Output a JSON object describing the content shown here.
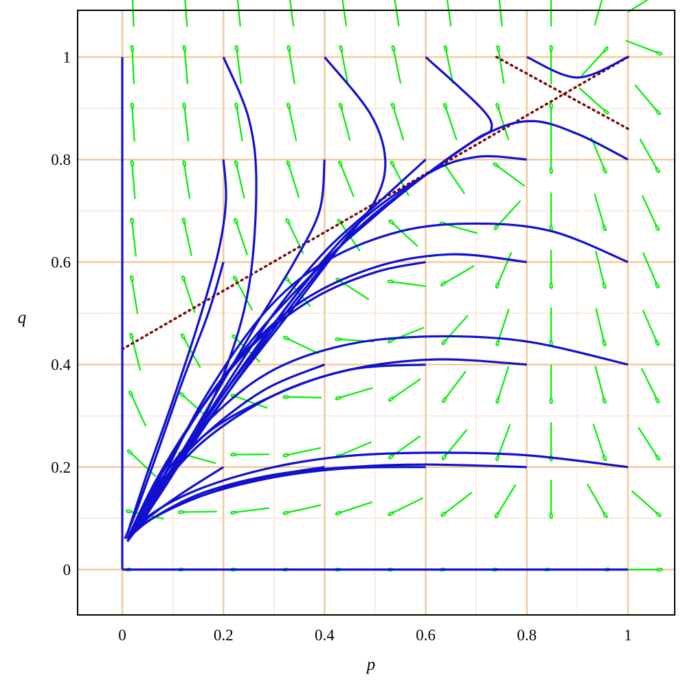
{
  "chart_data": {
    "type": "line",
    "subtype": "phase-portrait",
    "title": "",
    "xlabel": "p",
    "ylabel": "q",
    "xlim": [
      -0.09,
      1.09
    ],
    "ylim": [
      -0.09,
      1.09
    ],
    "xticks": [
      0,
      0.2,
      0.4,
      0.6,
      0.8,
      1
    ],
    "yticks": [
      0,
      0.2,
      0.4,
      0.6,
      0.8,
      1
    ],
    "xtick_labels": [
      "0",
      "0.2",
      "0.4",
      "0.6",
      "0.8",
      "1"
    ],
    "ytick_labels": [
      "0",
      "0.2",
      "0.4",
      "0.6",
      "0.8",
      "1"
    ],
    "grid": true,
    "colors": {
      "trajectory": "#1010d0",
      "direction_field": "#00ee00",
      "dotted_line": "#7b0a0a",
      "grid_major": "#f7c89a",
      "grid_minor": "#fbe6d4",
      "frame": "#000000"
    },
    "dotted_lines": [
      {
        "points": [
          [
            0,
            0.43
          ],
          [
            1,
            1
          ]
        ]
      },
      {
        "points": [
          [
            0.74,
            1
          ],
          [
            1,
            0.86
          ]
        ]
      }
    ],
    "trajectories": [
      {
        "points": [
          [
            0,
            1
          ],
          [
            0,
            0.5
          ],
          [
            0,
            0
          ]
        ]
      },
      {
        "points": [
          [
            0.2,
            1
          ],
          [
            0.25,
            0.88
          ],
          [
            0.265,
            0.75
          ],
          [
            0.25,
            0.55
          ],
          [
            0.2,
            0.38
          ],
          [
            0.12,
            0.22
          ],
          [
            0.05,
            0.11
          ],
          [
            0.01,
            0.055
          ]
        ]
      },
      {
        "points": [
          [
            0.4,
            1
          ],
          [
            0.49,
            0.89
          ],
          [
            0.52,
            0.8
          ],
          [
            0.5,
            0.72
          ],
          [
            0.43,
            0.63
          ],
          [
            0.33,
            0.5
          ],
          [
            0.22,
            0.36
          ],
          [
            0.12,
            0.22
          ],
          [
            0.04,
            0.1
          ],
          [
            0.01,
            0.055
          ]
        ]
      },
      {
        "points": [
          [
            0.6,
            1
          ],
          [
            0.71,
            0.9
          ],
          [
            0.73,
            0.86
          ],
          [
            0.7,
            0.84
          ],
          [
            0.6,
            0.77
          ],
          [
            0.5,
            0.69
          ],
          [
            0.38,
            0.58
          ],
          [
            0.25,
            0.41
          ],
          [
            0.12,
            0.23
          ],
          [
            0.04,
            0.1
          ],
          [
            0.01,
            0.055
          ]
        ]
      },
      {
        "points": [
          [
            0.8,
            1
          ],
          [
            0.9,
            0.96
          ],
          [
            1,
            1
          ]
        ]
      },
      {
        "points": [
          [
            1,
            0.8
          ],
          [
            0.9,
            0.85
          ],
          [
            0.81,
            0.875
          ],
          [
            0.72,
            0.85
          ],
          [
            0.6,
            0.77
          ],
          [
            0.45,
            0.65
          ],
          [
            0.3,
            0.47
          ],
          [
            0.15,
            0.26
          ],
          [
            0.05,
            0.11
          ],
          [
            0.01,
            0.055
          ]
        ]
      },
      {
        "points": [
          [
            0.8,
            0.8
          ],
          [
            0.7,
            0.805
          ],
          [
            0.6,
            0.77
          ],
          [
            0.45,
            0.66
          ],
          [
            0.3,
            0.48
          ],
          [
            0.15,
            0.27
          ],
          [
            0.05,
            0.11
          ],
          [
            0.01,
            0.055
          ]
        ]
      },
      {
        "points": [
          [
            0.6,
            0.8
          ],
          [
            0.5,
            0.71
          ],
          [
            0.4,
            0.62
          ],
          [
            0.3,
            0.5
          ],
          [
            0.18,
            0.32
          ],
          [
            0.08,
            0.16
          ],
          [
            0.02,
            0.07
          ]
        ]
      },
      {
        "points": [
          [
            0.4,
            0.8
          ],
          [
            0.39,
            0.7
          ],
          [
            0.34,
            0.6
          ],
          [
            0.26,
            0.47
          ],
          [
            0.16,
            0.3
          ],
          [
            0.07,
            0.15
          ],
          [
            0.02,
            0.07
          ]
        ]
      },
      {
        "points": [
          [
            0.2,
            0.8
          ],
          [
            0.205,
            0.72
          ],
          [
            0.19,
            0.62
          ],
          [
            0.15,
            0.48
          ],
          [
            0.1,
            0.33
          ],
          [
            0.05,
            0.19
          ],
          [
            0.01,
            0.07
          ]
        ]
      },
      {
        "points": [
          [
            0.2,
            0.6
          ],
          [
            0.17,
            0.5
          ],
          [
            0.12,
            0.37
          ],
          [
            0.07,
            0.23
          ],
          [
            0.03,
            0.12
          ],
          [
            0.005,
            0.06
          ]
        ]
      },
      {
        "points": [
          [
            1,
            0.6
          ],
          [
            0.85,
            0.66
          ],
          [
            0.7,
            0.675
          ],
          [
            0.55,
            0.66
          ],
          [
            0.4,
            0.6
          ],
          [
            0.28,
            0.5
          ],
          [
            0.16,
            0.33
          ],
          [
            0.07,
            0.16
          ],
          [
            0.01,
            0.06
          ]
        ]
      },
      {
        "points": [
          [
            0.8,
            0.6
          ],
          [
            0.65,
            0.615
          ],
          [
            0.5,
            0.59
          ],
          [
            0.35,
            0.52
          ],
          [
            0.22,
            0.4
          ],
          [
            0.12,
            0.26
          ],
          [
            0.04,
            0.12
          ],
          [
            0.01,
            0.06
          ]
        ]
      },
      {
        "points": [
          [
            0.6,
            0.6
          ],
          [
            0.5,
            0.58
          ],
          [
            0.38,
            0.53
          ],
          [
            0.26,
            0.44
          ],
          [
            0.16,
            0.32
          ],
          [
            0.07,
            0.18
          ],
          [
            0.01,
            0.06
          ]
        ]
      },
      {
        "points": [
          [
            0.4,
            0.6
          ],
          [
            0.33,
            0.53
          ],
          [
            0.25,
            0.44
          ],
          [
            0.16,
            0.32
          ],
          [
            0.08,
            0.19
          ],
          [
            0.02,
            0.07
          ]
        ]
      },
      {
        "points": [
          [
            1,
            0.4
          ],
          [
            0.8,
            0.445
          ],
          [
            0.62,
            0.455
          ],
          [
            0.45,
            0.44
          ],
          [
            0.3,
            0.39
          ],
          [
            0.18,
            0.3
          ],
          [
            0.08,
            0.18
          ],
          [
            0.01,
            0.06
          ]
        ]
      },
      {
        "points": [
          [
            0.8,
            0.4
          ],
          [
            0.62,
            0.41
          ],
          [
            0.45,
            0.39
          ],
          [
            0.3,
            0.34
          ],
          [
            0.16,
            0.25
          ],
          [
            0.06,
            0.14
          ],
          [
            0.01,
            0.06
          ]
        ]
      },
      {
        "points": [
          [
            0.6,
            0.4
          ],
          [
            0.45,
            0.39
          ],
          [
            0.3,
            0.34
          ],
          [
            0.16,
            0.26
          ],
          [
            0.06,
            0.14
          ],
          [
            0.01,
            0.06
          ]
        ]
      },
      {
        "points": [
          [
            0.4,
            0.4
          ],
          [
            0.28,
            0.35
          ],
          [
            0.16,
            0.26
          ],
          [
            0.07,
            0.16
          ],
          [
            0.01,
            0.06
          ]
        ]
      },
      {
        "points": [
          [
            1,
            0.2
          ],
          [
            0.8,
            0.223
          ],
          [
            0.62,
            0.228
          ],
          [
            0.45,
            0.222
          ],
          [
            0.3,
            0.2
          ],
          [
            0.16,
            0.16
          ],
          [
            0.06,
            0.11
          ],
          [
            0.01,
            0.06
          ]
        ]
      },
      {
        "points": [
          [
            0.8,
            0.2
          ],
          [
            0.6,
            0.205
          ],
          [
            0.45,
            0.2
          ],
          [
            0.3,
            0.185
          ],
          [
            0.16,
            0.15
          ],
          [
            0.06,
            0.1
          ],
          [
            0.01,
            0.06
          ]
        ]
      },
      {
        "points": [
          [
            0.6,
            0.2
          ],
          [
            0.45,
            0.198
          ],
          [
            0.3,
            0.18
          ],
          [
            0.16,
            0.145
          ],
          [
            0.06,
            0.1
          ],
          [
            0.01,
            0.06
          ]
        ]
      },
      {
        "points": [
          [
            0.4,
            0.2
          ],
          [
            0.28,
            0.18
          ],
          [
            0.16,
            0.145
          ],
          [
            0.06,
            0.1
          ],
          [
            0.01,
            0.06
          ]
        ]
      },
      {
        "points": [
          [
            0.2,
            0.2
          ],
          [
            0.12,
            0.15
          ],
          [
            0.05,
            0.1
          ],
          [
            0.01,
            0.06
          ]
        ]
      },
      {
        "points": [
          [
            0,
            0
          ],
          [
            1,
            0
          ]
        ]
      }
    ]
  }
}
